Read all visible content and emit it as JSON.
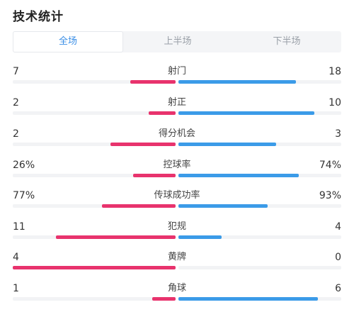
{
  "title": "技术统计",
  "tabs": [
    {
      "label": "全场",
      "active": true
    },
    {
      "label": "上半场",
      "active": false
    },
    {
      "label": "下半场",
      "active": false
    }
  ],
  "colors": {
    "home": "#e8336d",
    "away": "#3b9be8",
    "track": "#f2f3f5"
  },
  "stats": [
    {
      "label": "射门",
      "home": "7",
      "away": "18",
      "home_value": 7,
      "away_value": 18
    },
    {
      "label": "射正",
      "home": "2",
      "away": "10",
      "home_value": 2,
      "away_value": 10
    },
    {
      "label": "得分机会",
      "home": "2",
      "away": "3",
      "home_value": 2,
      "away_value": 3
    },
    {
      "label": "控球率",
      "home": "26%",
      "away": "74%",
      "home_value": 26,
      "away_value": 74
    },
    {
      "label": "传球成功率",
      "home": "77%",
      "away": "93%",
      "home_value": 77,
      "away_value": 93
    },
    {
      "label": "犯规",
      "home": "11",
      "away": "4",
      "home_value": 11,
      "away_value": 4
    },
    {
      "label": "黄牌",
      "home": "4",
      "away": "0",
      "home_value": 4,
      "away_value": 0
    },
    {
      "label": "角球",
      "home": "1",
      "away": "6",
      "home_value": 1,
      "away_value": 6
    }
  ]
}
